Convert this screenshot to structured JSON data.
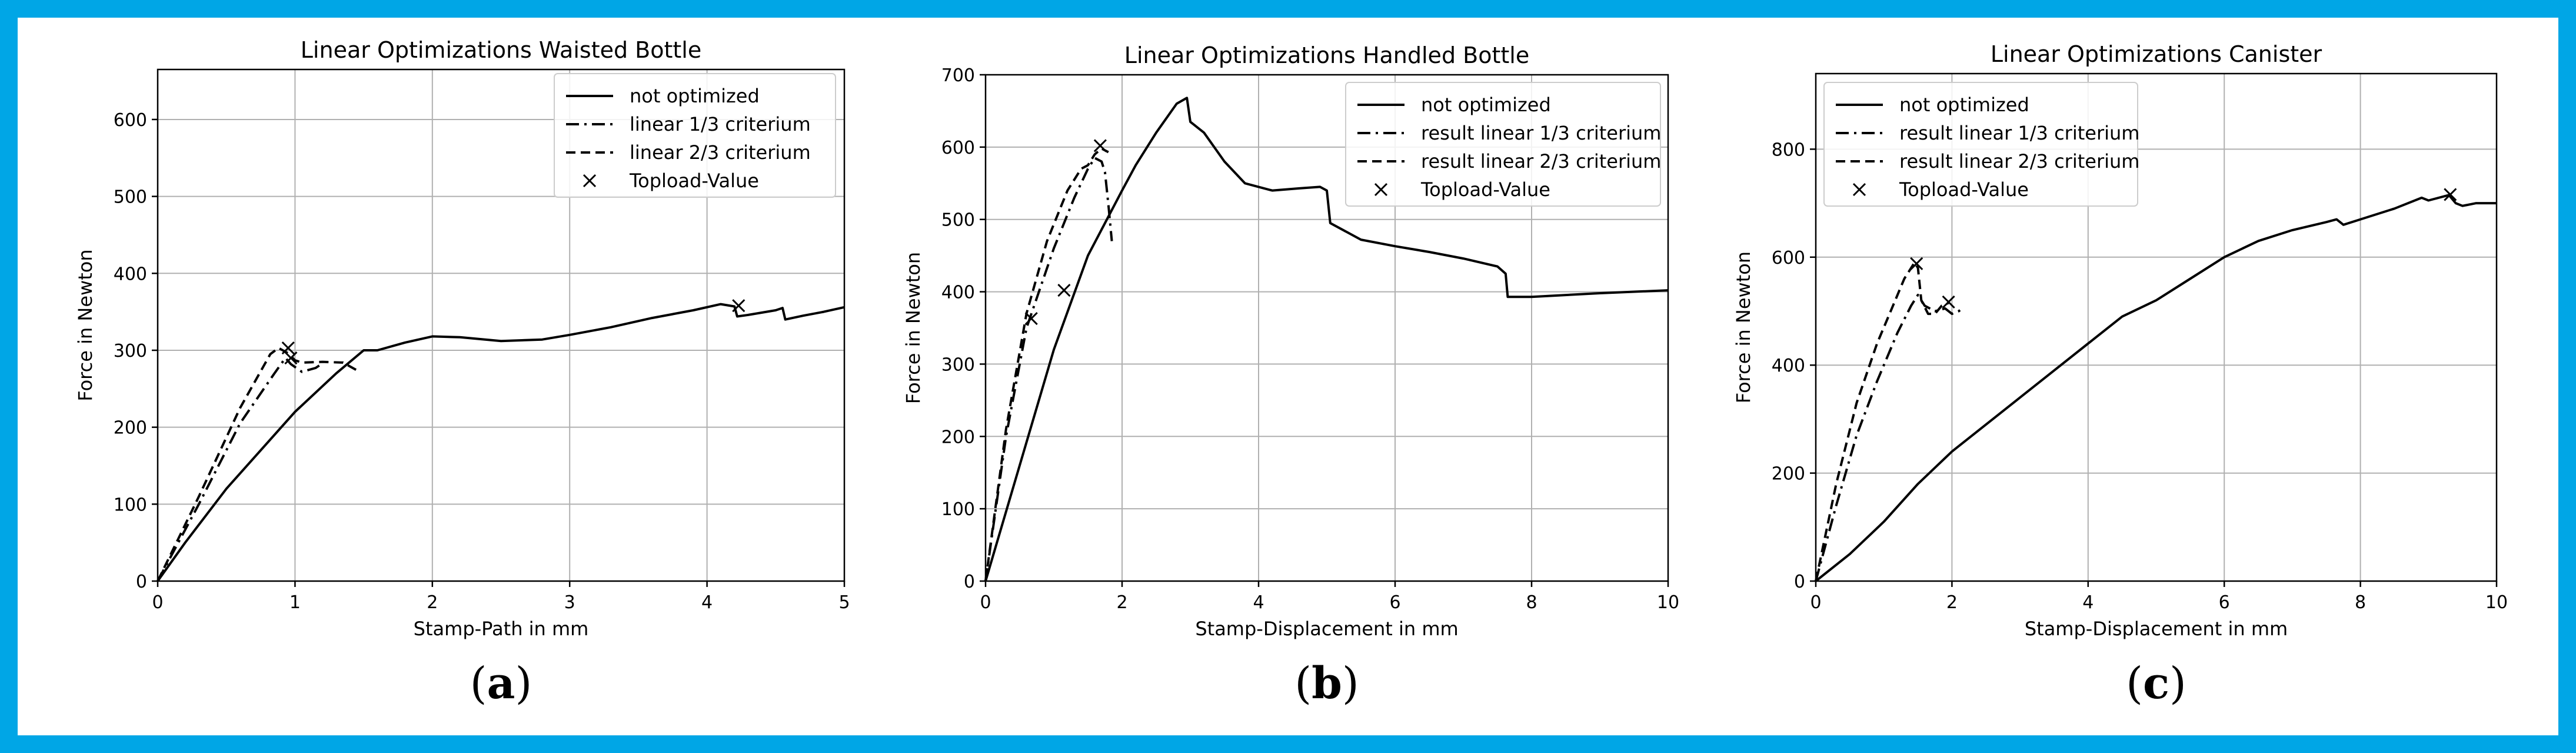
{
  "chart_data": [
    {
      "type": "line",
      "title": "Linear Optimizations Waisted Bottle",
      "xlabel": "Stamp-Path in mm",
      "ylabel": "Force in Newton",
      "panel_label": "a",
      "xlim": [
        0,
        5
      ],
      "ylim": [
        0,
        665
      ],
      "xticks": [
        0,
        1,
        2,
        3,
        4,
        5
      ],
      "yticks": [
        0,
        100,
        200,
        300,
        400,
        500,
        600
      ],
      "grid": true,
      "legend_position": "top-right",
      "series": [
        {
          "name": "not optimized",
          "style": "solid",
          "x": [
            0,
            0.2,
            0.5,
            1.0,
            1.3,
            1.5,
            1.6,
            1.8,
            2.0,
            2.2,
            2.5,
            2.8,
            3.0,
            3.3,
            3.6,
            3.9,
            4.1,
            4.2,
            4.22,
            4.3,
            4.5,
            4.55,
            4.57,
            4.7,
            4.85,
            5.0
          ],
          "y": [
            0,
            50,
            120,
            220,
            270,
            300,
            300,
            310,
            318,
            317,
            312,
            314,
            320,
            330,
            342,
            352,
            360,
            357,
            344,
            346,
            352,
            355,
            340,
            345,
            350,
            356
          ]
        },
        {
          "name": "linear 1/3 criterium",
          "style": "dashdot",
          "x": [
            0,
            0.3,
            0.6,
            0.85,
            0.93,
            0.97,
            1.05,
            1.15,
            1.2
          ],
          "y": [
            0,
            100,
            205,
            270,
            290,
            282,
            272,
            277,
            283
          ]
        },
        {
          "name": "linear 2/3 criterium",
          "style": "dashed",
          "x": [
            0,
            0.3,
            0.6,
            0.82,
            0.88,
            0.95,
            1.0,
            1.05,
            1.2,
            1.35,
            1.45
          ],
          "y": [
            0,
            110,
            225,
            295,
            303,
            296,
            287,
            284,
            285,
            284,
            274
          ]
        },
        {
          "name": "Topload-Value",
          "style": "marker",
          "x": [
            0.95,
            0.97,
            4.23
          ],
          "y": [
            303,
            290,
            358
          ]
        }
      ]
    },
    {
      "type": "line",
      "title": "Linear Optimizations Handled Bottle",
      "xlabel": "Stamp-Displacement in mm",
      "ylabel": "Force in Newton",
      "panel_label": "b",
      "xlim": [
        0,
        10
      ],
      "ylim": [
        0,
        700
      ],
      "xticks": [
        0,
        2,
        4,
        6,
        8,
        10
      ],
      "yticks": [
        0,
        100,
        200,
        300,
        400,
        500,
        600,
        700
      ],
      "grid": true,
      "legend_position": "top-right",
      "series": [
        {
          "name": "not optimized",
          "style": "solid",
          "x": [
            0,
            0.5,
            1.0,
            1.5,
            2.0,
            2.2,
            2.5,
            2.8,
            2.95,
            3.0,
            3.2,
            3.5,
            3.8,
            4.2,
            4.6,
            4.9,
            5.0,
            5.05,
            5.5,
            6.0,
            6.5,
            7.0,
            7.5,
            7.62,
            7.65,
            8.0,
            9.0,
            10.0
          ],
          "y": [
            0,
            160,
            320,
            450,
            540,
            575,
            620,
            660,
            668,
            635,
            620,
            580,
            550,
            540,
            543,
            545,
            540,
            495,
            472,
            463,
            455,
            446,
            435,
            425,
            393,
            393,
            398,
            402
          ]
        },
        {
          "name": "result linear 1/3 criterium",
          "style": "dashdot",
          "x": [
            0,
            0.3,
            0.6,
            1.0,
            1.3,
            1.5,
            1.6,
            1.7,
            1.75,
            1.8,
            1.85
          ],
          "y": [
            0,
            200,
            350,
            460,
            530,
            570,
            585,
            580,
            565,
            520,
            470
          ]
        },
        {
          "name": "result linear 2/3 criterium",
          "style": "dashed",
          "x": [
            0,
            0.3,
            0.6,
            0.9,
            1.2,
            1.4,
            1.5,
            1.6,
            1.7,
            1.8
          ],
          "y": [
            0,
            210,
            370,
            470,
            540,
            570,
            575,
            590,
            598,
            593
          ]
        },
        {
          "name": "Topload-Value",
          "style": "marker",
          "x": [
            0.67,
            1.15,
            1.68
          ],
          "y": [
            363,
            402,
            602
          ]
        }
      ]
    },
    {
      "type": "line",
      "title": "Linear Optimizations Canister",
      "xlabel": "Stamp-Displacement in mm",
      "ylabel": "Force in Newton",
      "panel_label": "c",
      "xlim": [
        0,
        10
      ],
      "ylim": [
        0,
        940
      ],
      "xticks": [
        0,
        2,
        4,
        6,
        8,
        10
      ],
      "yticks": [
        0,
        200,
        400,
        600,
        800
      ],
      "grid": true,
      "legend_position": "top-left",
      "series": [
        {
          "name": "not optimized",
          "style": "solid",
          "x": [
            0,
            0.5,
            1.0,
            1.5,
            2.0,
            3.0,
            4.0,
            4.5,
            5.0,
            5.5,
            6.0,
            6.5,
            7.0,
            7.5,
            7.65,
            7.75,
            8.0,
            8.5,
            8.9,
            9.0,
            9.3,
            9.4,
            9.5,
            9.7,
            10.0
          ],
          "y": [
            0,
            50,
            110,
            180,
            240,
            340,
            440,
            490,
            520,
            560,
            600,
            630,
            650,
            665,
            670,
            660,
            670,
            690,
            710,
            705,
            715,
            700,
            695,
            700,
            700
          ]
        },
        {
          "name": "result linear 1/3 criterium",
          "style": "dashdot",
          "x": [
            0,
            0.3,
            0.6,
            0.9,
            1.2,
            1.4,
            1.5,
            1.6,
            1.75,
            1.9,
            2.0,
            2.1,
            2.15
          ],
          "y": [
            0,
            140,
            270,
            370,
            460,
            510,
            530,
            510,
            500,
            505,
            495,
            500,
            505
          ]
        },
        {
          "name": "result linear 2/3 criterium",
          "style": "dashed",
          "x": [
            0,
            0.3,
            0.6,
            0.9,
            1.1,
            1.3,
            1.45,
            1.5,
            1.55,
            1.65,
            1.75,
            1.85,
            1.95
          ],
          "y": [
            0,
            180,
            330,
            440,
            500,
            560,
            590,
            580,
            520,
            495,
            495,
            510,
            515
          ]
        },
        {
          "name": "Topload-Value",
          "style": "marker",
          "x": [
            1.48,
            1.95,
            9.32
          ],
          "y": [
            588,
            517,
            716
          ]
        }
      ]
    }
  ]
}
